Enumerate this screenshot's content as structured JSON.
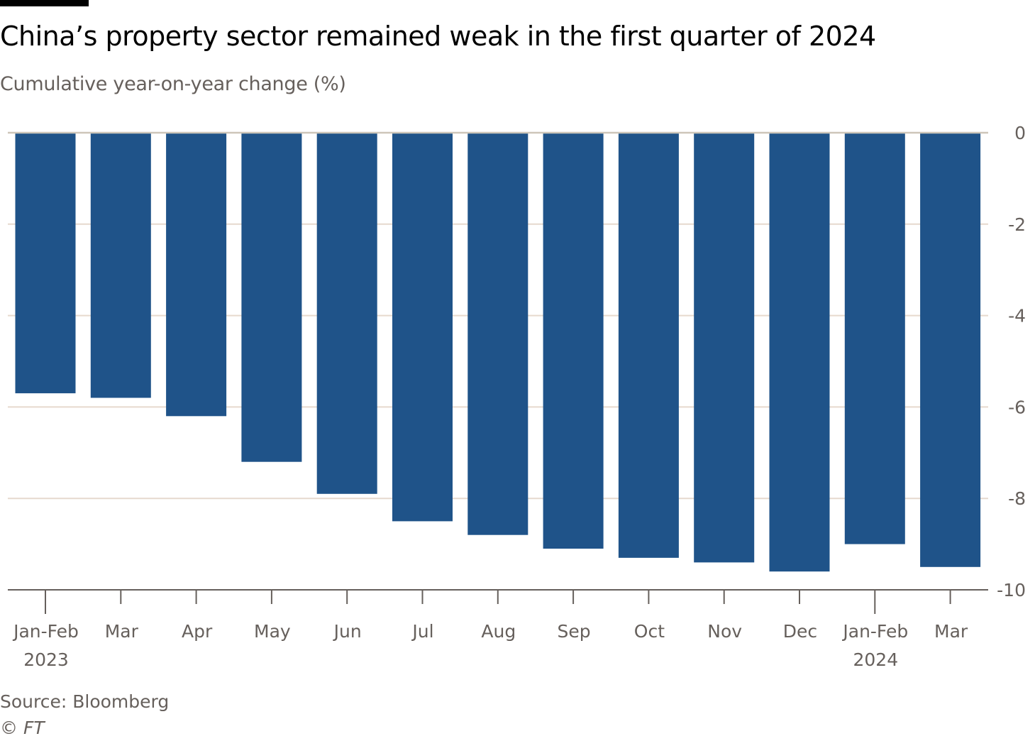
{
  "header": {
    "title": "China’s property sector remained weak in the first quarter of 2024",
    "subtitle": "Cumulative year-on-year change (%)"
  },
  "footer": {
    "source": "Source: Bloomberg",
    "copyright": "© FT"
  },
  "chart_data": {
    "type": "bar",
    "title": "China’s property sector remained weak in the first quarter of 2024",
    "subtitle": "Cumulative year-on-year change (%)",
    "categories": [
      "Jan-Feb",
      "Mar",
      "Apr",
      "May",
      "Jun",
      "Jul",
      "Aug",
      "Sep",
      "Oct",
      "Nov",
      "Dec",
      "Jan-Feb",
      "Mar"
    ],
    "category_years": [
      "2023",
      "",
      "",
      "",
      "",
      "",
      "",
      "",
      "",
      "",
      "",
      "2024",
      ""
    ],
    "values": [
      -5.7,
      -5.8,
      -6.2,
      -7.2,
      -7.9,
      -8.5,
      -8.8,
      -9.1,
      -9.3,
      -9.4,
      -9.6,
      -9.0,
      -9.5
    ],
    "ylim": [
      -10,
      0
    ],
    "yticks": [
      0,
      -2,
      -4,
      -6,
      -8,
      -10
    ],
    "y_axis_position": "right",
    "grid": true,
    "xlabel": "",
    "ylabel": "",
    "colors": {
      "bar": "#1f5389",
      "grid": "#e6d9ce",
      "zero_line": "#cec6b9",
      "axis": "#66605c"
    }
  }
}
